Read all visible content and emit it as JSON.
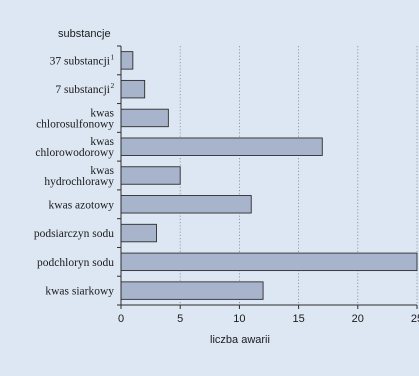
{
  "colors": {
    "background": "#dde7f3",
    "bar_fill": "#a7b4cc",
    "bar_stroke": "#2d2d2d",
    "grid": "#7f8a96",
    "axis": "#2d2d2d"
  },
  "chart_data": {
    "type": "bar",
    "orientation": "horizontal",
    "ylabel": "substancje",
    "xlabel": "liczba awarii",
    "xlim": [
      0,
      25
    ],
    "xticks": [
      "0",
      "5",
      "10",
      "15",
      "20",
      "25"
    ],
    "grid": "vertical dotted lines",
    "legend": "none",
    "categories": [
      {
        "lines": [
          "37 substancji"
        ],
        "sup": "1"
      },
      {
        "lines": [
          "7 substancji"
        ],
        "sup": "2"
      },
      {
        "lines": [
          "kwas",
          "chlorosulfonowy"
        ]
      },
      {
        "lines": [
          "kwas",
          "chlorowodorowy"
        ]
      },
      {
        "lines": [
          "kwas",
          "hydrochlorawy"
        ]
      },
      {
        "lines": [
          "kwas azotowy"
        ]
      },
      {
        "lines": [
          "podsiarczyn sodu"
        ]
      },
      {
        "lines": [
          "podchloryn sodu"
        ]
      },
      {
        "lines": [
          "kwas siarkowy"
        ]
      }
    ],
    "values": [
      1,
      2,
      4,
      17,
      5,
      11,
      3,
      25,
      12
    ]
  }
}
